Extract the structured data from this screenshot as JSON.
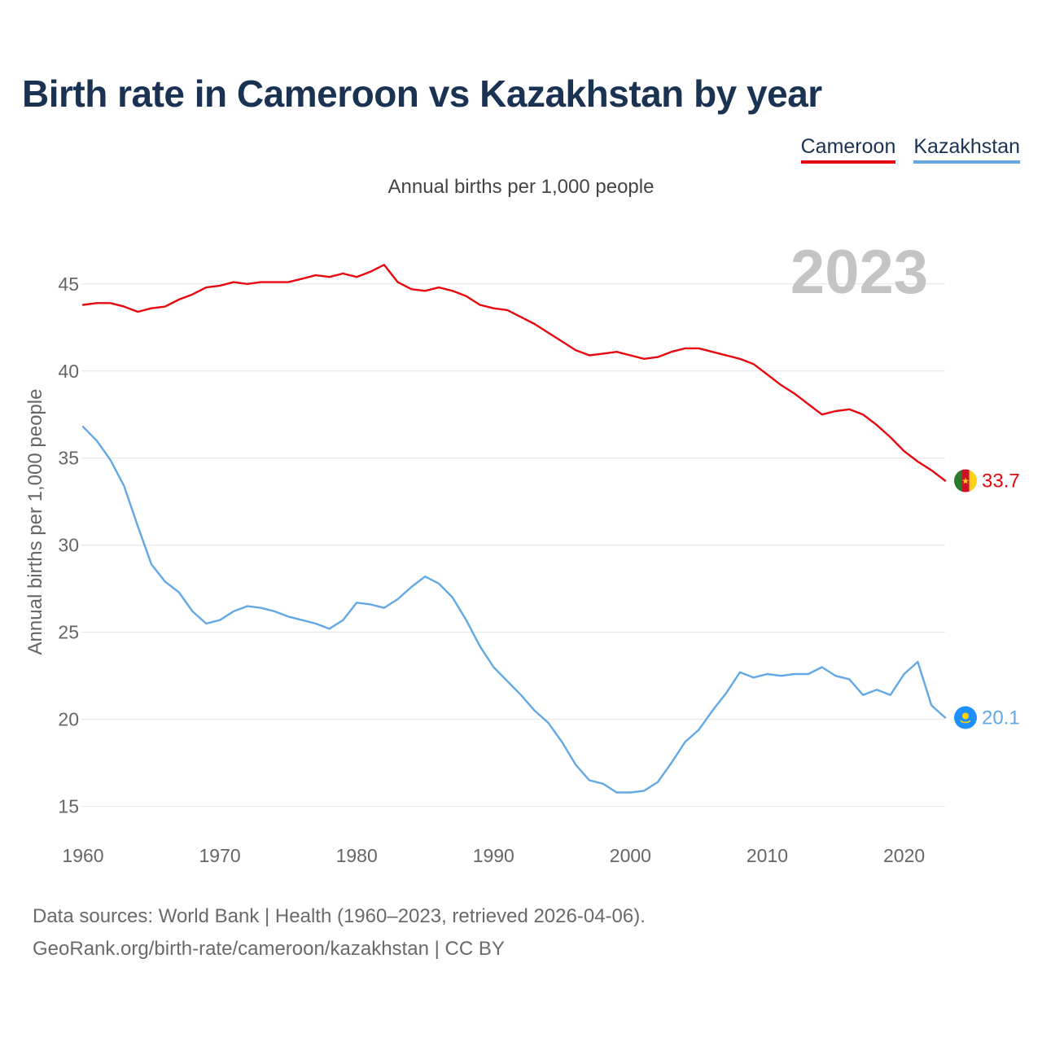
{
  "title": "Birth rate in Cameroon vs Kazakhstan by year",
  "legend": [
    {
      "name": "Cameroon",
      "color": "#e8070f"
    },
    {
      "name": "Kazakhstan",
      "color": "#62a8e5"
    }
  ],
  "chart_data": {
    "type": "line",
    "subtitle": "Annual births per 1,000 people",
    "ylabel": "Annual births per 1,000 people",
    "xlabel": "",
    "xlim": [
      1960,
      2023
    ],
    "ylim": [
      14,
      47
    ],
    "year_label": "2023",
    "x_ticks": [
      "1960",
      "1970",
      "1980",
      "1990",
      "2000",
      "2010",
      "2020"
    ],
    "y_ticks": [
      "15",
      "20",
      "25",
      "30",
      "35",
      "40",
      "45"
    ],
    "x": [
      1960,
      1961,
      1962,
      1963,
      1964,
      1965,
      1966,
      1967,
      1968,
      1969,
      1970,
      1971,
      1972,
      1973,
      1974,
      1975,
      1976,
      1977,
      1978,
      1979,
      1980,
      1981,
      1982,
      1983,
      1984,
      1985,
      1986,
      1987,
      1988,
      1989,
      1990,
      1991,
      1992,
      1993,
      1994,
      1995,
      1996,
      1997,
      1998,
      1999,
      2000,
      2001,
      2002,
      2003,
      2004,
      2005,
      2006,
      2007,
      2008,
      2009,
      2010,
      2011,
      2012,
      2013,
      2014,
      2015,
      2016,
      2017,
      2018,
      2019,
      2020,
      2021,
      2022,
      2023
    ],
    "series": [
      {
        "name": "Cameroon",
        "color": "#e8070f",
        "end_label": "33.7",
        "values": [
          43.8,
          43.9,
          43.9,
          43.7,
          43.4,
          43.6,
          43.7,
          44.1,
          44.4,
          44.8,
          44.9,
          45.1,
          45.0,
          45.1,
          45.1,
          45.1,
          45.3,
          45.5,
          45.4,
          45.6,
          45.4,
          45.7,
          46.1,
          45.1,
          44.7,
          44.6,
          44.8,
          44.6,
          44.3,
          43.8,
          43.6,
          43.5,
          43.1,
          42.7,
          42.2,
          41.7,
          41.2,
          40.9,
          41.0,
          41.1,
          40.9,
          40.7,
          40.8,
          41.1,
          41.3,
          41.3,
          41.1,
          40.9,
          40.7,
          40.4,
          39.8,
          39.2,
          38.7,
          38.1,
          37.5,
          37.7,
          37.8,
          37.5,
          36.9,
          36.2,
          35.4,
          34.8,
          34.3,
          33.7
        ]
      },
      {
        "name": "Kazakhstan",
        "color": "#62a8e5",
        "end_label": "20.1",
        "values": [
          36.8,
          36.0,
          34.9,
          33.4,
          31.1,
          28.9,
          27.9,
          27.3,
          26.2,
          25.5,
          25.7,
          26.2,
          26.5,
          26.4,
          26.2,
          25.9,
          25.7,
          25.5,
          25.2,
          25.7,
          26.7,
          26.6,
          26.4,
          26.9,
          27.6,
          28.2,
          27.8,
          27.0,
          25.7,
          24.2,
          23.0,
          22.2,
          21.4,
          20.5,
          19.8,
          18.7,
          17.4,
          16.5,
          16.3,
          15.8,
          15.8,
          15.9,
          16.4,
          17.5,
          18.7,
          19.4,
          20.5,
          21.5,
          22.7,
          22.4,
          22.6,
          22.5,
          22.6,
          22.6,
          23.0,
          22.5,
          22.3,
          21.4,
          21.7,
          21.4,
          22.6,
          23.3,
          20.8,
          20.1
        ]
      }
    ]
  },
  "footer": {
    "line1": "Data sources: World Bank | Health (1960–2023, retrieved 2026-04-06).",
    "line2": "GeoRank.org/birth-rate/cameroon/kazakhstan | CC BY"
  }
}
